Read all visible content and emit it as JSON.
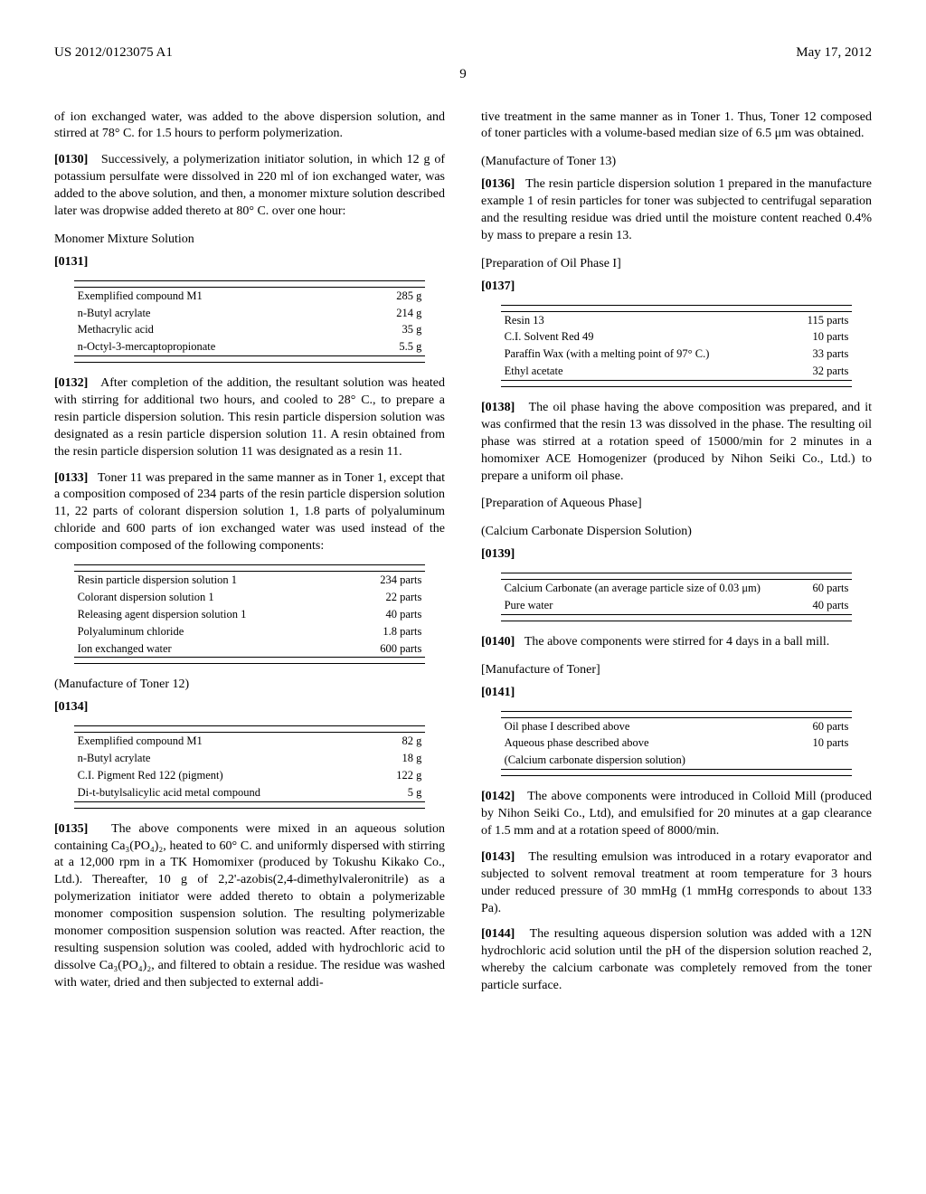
{
  "header": {
    "left": "US 2012/0123075 A1",
    "right": "May 17, 2012",
    "page": "9"
  },
  "left_col": {
    "p_intro": "of ion exchanged water, was added to the above dispersion solution, and stirred at 78° C. for 1.5 hours to perform polymerization.",
    "p0130_num": "[0130]",
    "p0130": "Successively, a polymerization initiator solution, in which 12 g of potassium persulfate were dissolved in 220 ml of ion exchanged water, was added to the above solution, and then, a monomer mixture solution described later was dropwise added thereto at 80° C. over one hour:",
    "monomer_label": "Monomer Mixture Solution",
    "p0131_num": "[0131]",
    "table_monomer": {
      "rows": [
        [
          "Exemplified compound M1",
          "285 g"
        ],
        [
          "n-Butyl acrylate",
          "214 g"
        ],
        [
          "Methacrylic acid",
          "35 g"
        ],
        [
          "n-Octyl-3-mercaptopropionate",
          "5.5 g"
        ]
      ]
    },
    "p0132_num": "[0132]",
    "p0132": "After completion of the addition, the resultant solution was heated with stirring for additional two hours, and cooled to 28° C., to prepare a resin particle dispersion solution. This resin particle dispersion solution was designated as a resin particle dispersion solution 11. A resin obtained from the resin particle dispersion solution 11 was designated as a resin 11.",
    "p0133_num": "[0133]",
    "p0133": "Toner 11 was prepared in the same manner as in Toner 1, except that a composition composed of 234 parts of the resin particle dispersion solution 11, 22 parts of colorant dispersion solution 1, 1.8 parts of polyaluminum chloride and 600 parts of ion exchanged water was used instead of the composition composed of the following components:",
    "table_comp": {
      "rows": [
        [
          "Resin particle dispersion solution 1",
          "234 parts"
        ],
        [
          "Colorant dispersion solution 1",
          "22 parts"
        ],
        [
          "Releasing agent dispersion solution 1",
          "40 parts"
        ],
        [
          "Polyaluminum chloride",
          "1.8 parts"
        ],
        [
          "Ion exchanged water",
          "600 parts"
        ]
      ]
    },
    "toner12_label": "(Manufacture of Toner 12)",
    "p0134_num": "[0134]",
    "table_t12": {
      "rows": [
        [
          "Exemplified compound M1",
          "82 g"
        ],
        [
          "n-Butyl acrylate",
          "18 g"
        ],
        [
          "C.I. Pigment Red 122 (pigment)",
          "122 g"
        ],
        [
          "Di-t-butylsalicylic acid metal compound",
          "5 g"
        ]
      ]
    },
    "p0135_num": "[0135]",
    "p0135": "The above components were mixed in an aqueous solution containing Ca₃(PO₄)₂, heated to 60° C. and uniformly dispersed with stirring at a 12,000 rpm in a TK Homomixer (produced by Tokushu Kikako Co., Ltd.). Thereafter, 10 g of 2,2'-azobis(2,4-dimethylvaleronitrile) as a polymerization initiator were added thereto to obtain a polymerizable monomer composition suspension solution. The resulting polymerizable monomer composition suspension solution was reacted. After reaction, the resulting suspension solution was cooled, added with hydrochloric acid to dissolve Ca₃(PO₄)₂, and filtered to obtain a residue. The residue was washed with water, dried and then subjected to external addi-"
  },
  "right_col": {
    "p_cont": "tive treatment in the same manner as in Toner 1. Thus, Toner 12 composed of toner particles with a volume-based median size of 6.5 μm was obtained.",
    "toner13_label": "(Manufacture of Toner 13)",
    "p0136_num": "[0136]",
    "p0136": "The resin particle dispersion solution 1 prepared in the manufacture example 1 of resin particles for toner was subjected to centrifugal separation and the resulting residue was dried until the moisture content reached 0.4% by mass to prepare a resin 13.",
    "oil_label": "[Preparation of Oil Phase I]",
    "p0137_num": "[0137]",
    "table_oil": {
      "rows": [
        [
          "Resin 13",
          "115 parts"
        ],
        [
          "C.I. Solvent Red 49",
          "10 parts"
        ],
        [
          "Paraffin Wax (with a melting point of 97° C.)",
          "33 parts"
        ],
        [
          "Ethyl acetate",
          "32 parts"
        ]
      ]
    },
    "p0138_num": "[0138]",
    "p0138": "The oil phase having the above composition was prepared, and it was confirmed that the resin 13 was dissolved in the phase. The resulting oil phase was stirred at a rotation speed of 15000/min for 2 minutes in a homomixer ACE Homogenizer (produced by Nihon Seiki Co., Ltd.) to prepare a uniform oil phase.",
    "aq_label": "[Preparation of Aqueous Phase]",
    "caco3_label": "(Calcium Carbonate Dispersion Solution)",
    "p0139_num": "[0139]",
    "table_caco3": {
      "rows": [
        [
          "Calcium Carbonate (an average particle size of 0.03 μm)",
          "60 parts"
        ],
        [
          "Pure water",
          "40 parts"
        ]
      ]
    },
    "p0140_num": "[0140]",
    "p0140": "The above components were stirred for 4 days in a ball mill.",
    "mfg_label": "[Manufacture of Toner]",
    "p0141_num": "[0141]",
    "table_mfg": {
      "rows": [
        [
          "Oil phase I described above",
          "60 parts"
        ],
        [
          "Aqueous phase described above",
          "10 parts"
        ],
        [
          "(Calcium carbonate dispersion solution)",
          ""
        ]
      ]
    },
    "p0142_num": "[0142]",
    "p0142": "The above components were introduced in Colloid Mill (produced by Nihon Seiki Co., Ltd), and emulsified for 20 minutes at a gap clearance of 1.5 mm and at a rotation speed of 8000/min.",
    "p0143_num": "[0143]",
    "p0143": "The resulting emulsion was introduced in a rotary evaporator and subjected to solvent removal treatment at room temperature for 3 hours under reduced pressure of 30 mmHg (1 mmHg corresponds to about 133 Pa).",
    "p0144_num": "[0144]",
    "p0144": "The resulting aqueous dispersion solution was added with a 12N hydrochloric acid solution until the pH of the dispersion solution reached 2, whereby the calcium carbonate was completely removed from the toner particle surface."
  }
}
